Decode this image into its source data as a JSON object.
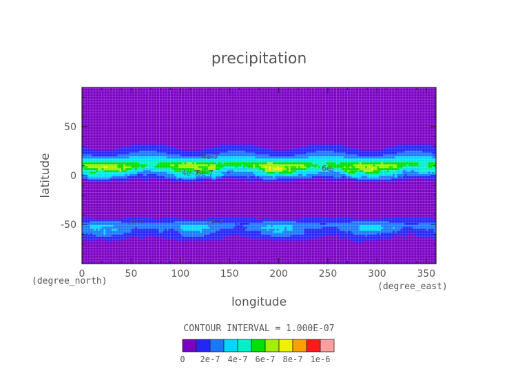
{
  "chart_data": {
    "type": "heatmap",
    "title": "precipitation",
    "xlabel": "longitude",
    "ylabel": "latitude",
    "x_units": "(degree_east)",
    "y_units": "(degree_north)",
    "xlim": [
      0,
      360
    ],
    "ylim": [
      -90,
      90
    ],
    "x_ticks": [
      "0",
      "50",
      "100",
      "150",
      "200",
      "250",
      "300",
      "350"
    ],
    "y_ticks": [
      "-50",
      "0",
      "50"
    ],
    "x_tick_values": [
      0,
      50,
      100,
      150,
      200,
      250,
      300,
      350
    ],
    "y_tick_values": [
      -50,
      0,
      50
    ],
    "contour_interval_text": "CONTOUR INTERVAL = 1.000E-07",
    "contour_labels": [
      {
        "text": "2e-7",
        "lon": 55,
        "lat": -50
      },
      {
        "text": "2e-7",
        "lon": 135,
        "lat": -50
      },
      {
        "text": "4e-7",
        "lon": 110,
        "lat": 0
      },
      {
        "text": "6e-7",
        "lon": 125,
        "lat": 0
      },
      {
        "text": "4e-7",
        "lon": 130,
        "lat": 17
      },
      {
        "text": "6e-",
        "lon": 250,
        "lat": 5
      }
    ],
    "colorbar": {
      "levels": [
        0,
        1e-07,
        2e-07,
        3e-07,
        4e-07,
        5e-07,
        6e-07,
        7e-07,
        8e-07,
        9e-07,
        1e-06
      ],
      "colors": [
        "#7a00c4",
        "#2424ff",
        "#1a78ff",
        "#00d8ff",
        "#00f0c8",
        "#00e000",
        "#a0f000",
        "#f0f000",
        "#ffa000",
        "#ff1a1a",
        "#ff9e9e"
      ],
      "tick_labels": [
        "0",
        "2e-7",
        "4e-7",
        "6e-7",
        "8e-7",
        "1e-6"
      ]
    },
    "zonal_profile": [
      {
        "lat": -90,
        "value": 0
      },
      {
        "lat": -75,
        "value": 0
      },
      {
        "lat": -68,
        "value": 5e-08
      },
      {
        "lat": -62,
        "value": 1.3e-07
      },
      {
        "lat": -56,
        "value": 2.2e-07
      },
      {
        "lat": -52,
        "value": 2.8e-07
      },
      {
        "lat": -48,
        "value": 2.2e-07
      },
      {
        "lat": -44,
        "value": 1.2e-07
      },
      {
        "lat": -40,
        "value": 5e-08
      },
      {
        "lat": -35,
        "value": 0
      },
      {
        "lat": -8,
        "value": 0
      },
      {
        "lat": -3,
        "value": 1.5e-07
      },
      {
        "lat": 2,
        "value": 3.5e-07
      },
      {
        "lat": 6,
        "value": 5e-07
      },
      {
        "lat": 10,
        "value": 6e-07
      },
      {
        "lat": 14,
        "value": 5.2e-07
      },
      {
        "lat": 18,
        "value": 3.2e-07
      },
      {
        "lat": 22,
        "value": 2e-07
      },
      {
        "lat": 28,
        "value": 1.2e-07
      },
      {
        "lat": 35,
        "value": 5e-08
      },
      {
        "lat": 42,
        "value": 0
      },
      {
        "lat": 90,
        "value": 0
      }
    ]
  }
}
